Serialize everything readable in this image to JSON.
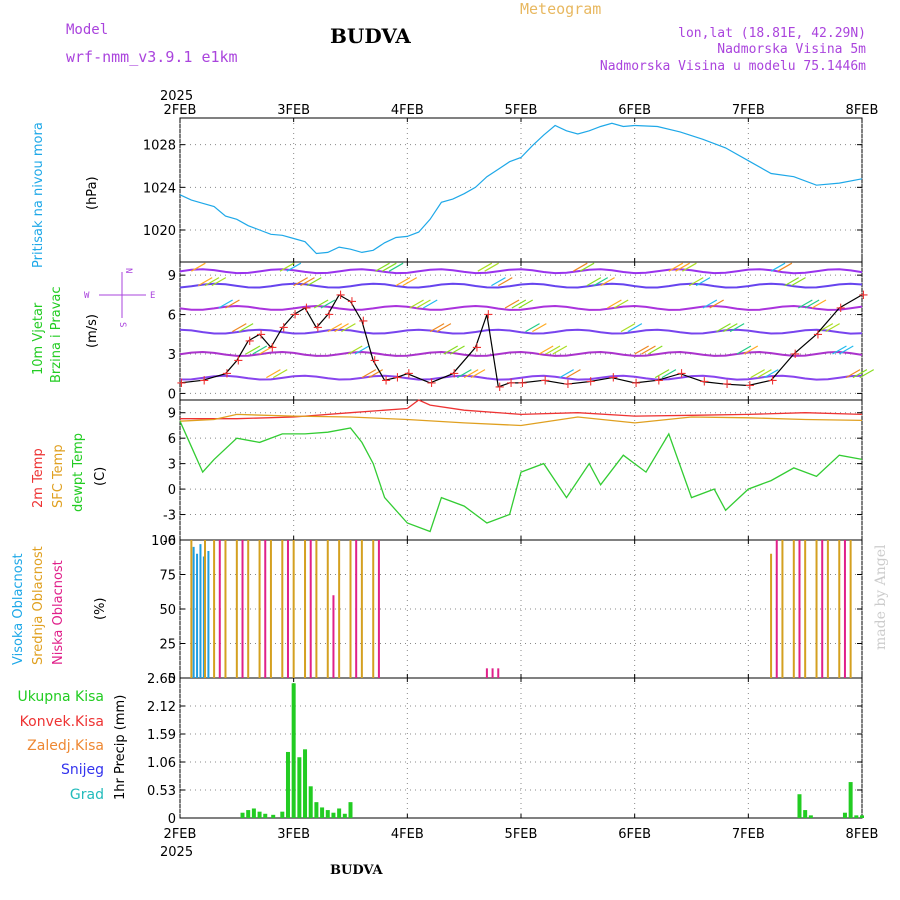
{
  "header": {
    "model_label": "Model",
    "model_name": "wrf-nmm_v3.9.1 e1km",
    "station": "BUDVA",
    "title": "Meteogram",
    "lonlat": "lon,lat (18.81E, 42.29N)",
    "elevation": "Nadmorska Visina 5m",
    "model_elevation": "Nadmorska Visina u modelu 75.1446m",
    "footer_station": "BUDVA",
    "watermark": "made by Angel"
  },
  "colors": {
    "pressure": "#1ea8e8",
    "wind_label": "#22cc22",
    "temp2m": "#ee3333",
    "sfc": "#e0a020",
    "dewpt": "#33cc33",
    "high_cloud": "#1e9ee0",
    "mid_cloud": "#d4a020",
    "low_cloud": "#e0208a",
    "precip_total": "#22cc22",
    "convective": "#ee3333",
    "freezing": "#ee8833",
    "snow": "#3333ee",
    "hail": "#22bbbb",
    "purple": "#aa44dd"
  },
  "chart_data": [
    {
      "type": "line",
      "panel": "pressure",
      "ylabel_rot": "Pritisak na nivou mora",
      "unit": "(hPa)",
      "x_year": "2025",
      "x_ticks": [
        "2FEB",
        "3FEB",
        "4FEB",
        "5FEB",
        "6FEB",
        "7FEB",
        "8FEB"
      ],
      "y_ticks": [
        "1020",
        "1024",
        "1028"
      ],
      "ylim": [
        1017,
        1030.5
      ],
      "x": [
        0,
        0.1,
        0.2,
        0.3,
        0.4,
        0.5,
        0.6,
        0.7,
        0.8,
        0.9,
        1.0,
        1.1,
        1.2,
        1.3,
        1.4,
        1.5,
        1.6,
        1.7,
        1.8,
        1.9,
        2.0,
        2.1,
        2.2,
        2.3,
        2.4,
        2.5,
        2.6,
        2.7,
        2.8,
        2.9,
        3.0,
        3.1,
        3.2,
        3.3,
        3.4,
        3.5,
        3.6,
        3.7,
        3.8,
        3.9,
        4.0,
        4.2,
        4.4,
        4.6,
        4.8,
        5.0,
        5.2,
        5.4,
        5.6,
        5.8,
        6.0
      ],
      "values": [
        1023.3,
        1022.8,
        1022.5,
        1022.2,
        1021.3,
        1021.0,
        1020.4,
        1020.0,
        1019.6,
        1019.5,
        1019.2,
        1018.9,
        1017.8,
        1017.9,
        1018.4,
        1018.2,
        1017.9,
        1018.1,
        1018.8,
        1019.3,
        1019.4,
        1019.8,
        1021.0,
        1022.6,
        1022.9,
        1023.4,
        1024.0,
        1025.0,
        1025.7,
        1026.4,
        1026.8,
        1027.9,
        1028.9,
        1029.8,
        1029.3,
        1029.0,
        1029.3,
        1029.7,
        1030.0,
        1029.7,
        1029.8,
        1029.7,
        1029.2,
        1028.5,
        1027.7,
        1026.5,
        1025.3,
        1025.0,
        1024.2,
        1024.4,
        1024.8
      ]
    },
    {
      "type": "line",
      "panel": "wind",
      "ylabel_rot_1": "10m Vjetar",
      "ylabel_rot_2": "Brzina i Pravac",
      "unit": "(m/s)",
      "compass": [
        "N",
        "W",
        "E",
        "S"
      ],
      "y_ticks": [
        "0",
        "3",
        "6",
        "9"
      ],
      "ylim": [
        -0.5,
        10
      ],
      "series": [
        {
          "name": "speed",
          "x": [
            0,
            0.2,
            0.4,
            0.5,
            0.6,
            0.7,
            0.8,
            0.9,
            1.0,
            1.1,
            1.2,
            1.3,
            1.4,
            1.5,
            1.6,
            1.7,
            1.8,
            1.9,
            2.0,
            2.2,
            2.4,
            2.6,
            2.7,
            2.8,
            2.9,
            3.0,
            3.2,
            3.4,
            3.6,
            3.8,
            4.0,
            4.2,
            4.4,
            4.6,
            4.8,
            5.0,
            5.2,
            5.4,
            5.6,
            5.8,
            6.0
          ],
          "values": [
            0.8,
            1.0,
            1.5,
            2.5,
            4.0,
            4.5,
            3.5,
            5.0,
            6.0,
            6.5,
            5.0,
            6.0,
            7.5,
            7.0,
            5.5,
            2.5,
            1.0,
            1.2,
            1.5,
            0.8,
            1.5,
            3.5,
            6.0,
            0.5,
            0.8,
            0.8,
            1.0,
            0.7,
            0.9,
            1.2,
            0.8,
            1.0,
            1.5,
            0.9,
            0.7,
            0.6,
            1.0,
            3.0,
            4.5,
            6.5,
            7.5
          ]
        }
      ]
    },
    {
      "type": "line",
      "panel": "temperature",
      "ylabel_rot_1": "2m Temp",
      "ylabel_rot_2": "SFC Temp",
      "ylabel_rot_3": "dewpt Temp",
      "unit": "(C)",
      "y_ticks": [
        "-6",
        "-3",
        "0",
        "3",
        "6",
        "9"
      ],
      "ylim": [
        -6,
        10.5
      ],
      "series": [
        {
          "name": "2m Temp",
          "x": [
            0,
            0.5,
            1.0,
            1.5,
            2.0,
            2.1,
            2.2,
            2.5,
            3.0,
            3.5,
            4.0,
            4.5,
            5.0,
            5.5,
            6.0
          ],
          "values": [
            8.3,
            8.3,
            8.5,
            9.0,
            9.5,
            10.5,
            9.9,
            9.3,
            8.8,
            9.0,
            8.6,
            8.7,
            8.8,
            9.0,
            8.8
          ]
        },
        {
          "name": "SFC Temp",
          "x": [
            0,
            0.3,
            0.5,
            1.0,
            1.5,
            2.0,
            2.5,
            3.0,
            3.5,
            4.0,
            4.5,
            5.0,
            5.5,
            6.0
          ],
          "values": [
            8.0,
            8.2,
            8.8,
            8.6,
            8.5,
            8.2,
            7.8,
            7.5,
            8.5,
            7.8,
            8.5,
            8.4,
            8.2,
            8.1
          ]
        },
        {
          "name": "dewpt Temp",
          "x": [
            0,
            0.1,
            0.2,
            0.3,
            0.5,
            0.7,
            0.9,
            1.1,
            1.3,
            1.5,
            1.6,
            1.7,
            1.8,
            2.0,
            2.2,
            2.3,
            2.5,
            2.7,
            2.9,
            3.0,
            3.2,
            3.4,
            3.6,
            3.7,
            3.9,
            4.1,
            4.3,
            4.5,
            4.7,
            4.8,
            5.0,
            5.2,
            5.4,
            5.6,
            5.8,
            6.0
          ],
          "values": [
            8.0,
            5.0,
            2.0,
            3.5,
            6.0,
            5.5,
            6.5,
            6.5,
            6.7,
            7.2,
            5.5,
            3.0,
            -1.0,
            -4.0,
            -5.0,
            -1.0,
            -2.0,
            -4.0,
            -3.0,
            2.0,
            3.0,
            -1.0,
            3.0,
            0.5,
            4.0,
            2.0,
            6.5,
            -1.0,
            0.0,
            -2.5,
            0.0,
            1.0,
            2.5,
            1.5,
            4.0,
            3.5
          ]
        }
      ]
    },
    {
      "type": "bar",
      "panel": "clouds",
      "ylabel_rot_1": "Visoka Oblacnost",
      "ylabel_rot_2": "Srednja Oblacnost",
      "ylabel_rot_3": "Niska Oblacnost",
      "unit": "(%)",
      "y_ticks": [
        "0",
        "25",
        "50",
        "75",
        "100"
      ],
      "ylim": [
        0,
        100
      ],
      "series": [
        {
          "name": "Visoka Oblacnost",
          "x": [
            0.12,
            0.15,
            0.18,
            0.21,
            0.25
          ],
          "values": [
            95,
            90,
            97,
            88,
            92
          ]
        },
        {
          "name": "Srednja Oblacnost",
          "x": [
            0.1,
            0.22,
            0.3,
            0.4,
            0.5,
            0.6,
            0.7,
            0.8,
            0.9,
            1.0,
            1.1,
            1.2,
            1.3,
            1.4,
            1.5,
            1.6,
            1.7,
            5.2,
            5.3,
            5.4,
            5.5,
            5.6,
            5.7,
            5.8,
            5.9
          ],
          "values": [
            100,
            100,
            100,
            100,
            100,
            100,
            100,
            100,
            100,
            100,
            100,
            100,
            100,
            100,
            100,
            100,
            100,
            90,
            100,
            100,
            100,
            100,
            100,
            100,
            100
          ]
        },
        {
          "name": "Niska Oblacnost",
          "x": [
            0.35,
            0.55,
            0.75,
            0.95,
            1.15,
            1.35,
            1.55,
            1.75,
            2.7,
            2.75,
            2.8,
            5.25,
            5.45,
            5.65,
            5.85
          ],
          "values": [
            100,
            100,
            100,
            100,
            100,
            60,
            100,
            100,
            7,
            7,
            7,
            100,
            100,
            100,
            100
          ]
        }
      ]
    },
    {
      "type": "bar",
      "panel": "precip",
      "legend": [
        "Ukupna Kisa",
        "Konvek.Kisa",
        "Zaledj.Kisa",
        "Snijeg",
        "Grad"
      ],
      "ylabel_rot": "1hr Precip (mm)",
      "y_ticks": [
        "0",
        "0.53",
        "1.06",
        "1.59",
        "2.12",
        "2.65"
      ],
      "ylim": [
        0,
        2.65
      ],
      "series": [
        {
          "name": "Ukupna Kisa",
          "x": [
            0.55,
            0.6,
            0.65,
            0.7,
            0.75,
            0.82,
            0.9,
            0.95,
            1.0,
            1.05,
            1.1,
            1.15,
            1.2,
            1.25,
            1.3,
            1.35,
            1.4,
            1.45,
            1.5,
            5.45,
            5.5,
            5.55,
            5.85,
            5.9,
            5.95,
            6.0
          ],
          "values": [
            0.1,
            0.15,
            0.18,
            0.12,
            0.08,
            0.06,
            0.12,
            1.25,
            2.55,
            1.15,
            1.3,
            0.6,
            0.3,
            0.2,
            0.15,
            0.1,
            0.18,
            0.08,
            0.3,
            0.45,
            0.15,
            0.05,
            0.1,
            0.68,
            0.05,
            0.05
          ]
        }
      ]
    }
  ]
}
